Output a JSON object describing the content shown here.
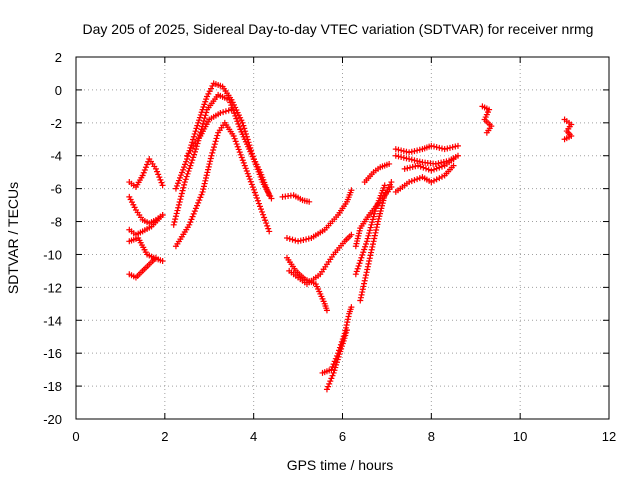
{
  "chart_data": {
    "type": "scatter",
    "title": "Day 205 of 2025, Sidereal Day-to-day VTEC variation (SDTVAR) for receiver nrmg",
    "xlabel": "GPS time / hours",
    "ylabel": "SDTVAR / TECUs",
    "xlim": [
      0,
      12
    ],
    "ylim": [
      -20,
      2
    ],
    "xticks": [
      0,
      2,
      4,
      6,
      8,
      10,
      12
    ],
    "yticks": [
      -20,
      -18,
      -16,
      -14,
      -12,
      -10,
      -8,
      -6,
      -4,
      -2,
      0,
      2
    ],
    "grid": true,
    "marker": "+",
    "color": "#ff0000",
    "series": [
      {
        "points": [
          [
            1.2,
            -5.6
          ],
          [
            1.35,
            -5.9
          ],
          [
            1.5,
            -5.2
          ],
          [
            1.65,
            -4.2
          ],
          [
            1.8,
            -4.8
          ],
          [
            1.95,
            -5.8
          ]
        ]
      },
      {
        "points": [
          [
            1.2,
            -6.5
          ],
          [
            1.35,
            -7.3
          ],
          [
            1.5,
            -7.9
          ],
          [
            1.65,
            -8.1
          ],
          [
            1.8,
            -7.9
          ],
          [
            1.95,
            -7.6
          ]
        ]
      },
      {
        "points": [
          [
            1.2,
            -8.5
          ],
          [
            1.35,
            -8.8
          ],
          [
            1.5,
            -8.6
          ],
          [
            1.7,
            -8.3
          ],
          [
            1.95,
            -7.6
          ]
        ]
      },
      {
        "points": [
          [
            1.2,
            -9.2
          ],
          [
            1.4,
            -9.0
          ],
          [
            1.6,
            -10.0
          ],
          [
            1.75,
            -10.2
          ],
          [
            1.95,
            -10.4
          ]
        ]
      },
      {
        "points": [
          [
            1.2,
            -11.2
          ],
          [
            1.35,
            -11.4
          ],
          [
            1.5,
            -11.0
          ],
          [
            1.65,
            -10.6
          ],
          [
            1.8,
            -10.2
          ]
        ]
      },
      {
        "points": [
          [
            2.25,
            -6.0
          ],
          [
            2.5,
            -4.2
          ],
          [
            2.75,
            -2.0
          ],
          [
            2.95,
            -0.4
          ],
          [
            3.1,
            0.4
          ],
          [
            3.3,
            0.2
          ],
          [
            3.5,
            -0.6
          ],
          [
            3.75,
            -2.0
          ],
          [
            4.0,
            -4.2
          ],
          [
            4.2,
            -5.6
          ],
          [
            4.4,
            -6.6
          ]
        ]
      },
      {
        "points": [
          [
            2.2,
            -8.2
          ],
          [
            2.45,
            -5.6
          ],
          [
            2.7,
            -3.6
          ],
          [
            2.95,
            -1.2
          ],
          [
            3.2,
            -0.3
          ],
          [
            3.45,
            -0.6
          ],
          [
            3.7,
            -2.4
          ],
          [
            3.95,
            -3.9
          ],
          [
            4.15,
            -5.0
          ],
          [
            4.35,
            -6.4
          ]
        ]
      },
      {
        "points": [
          [
            2.25,
            -9.5
          ],
          [
            2.55,
            -8.2
          ],
          [
            2.85,
            -6.2
          ],
          [
            3.05,
            -4.0
          ],
          [
            3.2,
            -2.6
          ],
          [
            3.35,
            -2.0
          ],
          [
            3.55,
            -2.8
          ],
          [
            3.8,
            -4.6
          ],
          [
            4.05,
            -6.4
          ],
          [
            4.35,
            -8.6
          ]
        ]
      },
      {
        "points": [
          [
            2.5,
            -4.0
          ],
          [
            2.8,
            -2.8
          ],
          [
            3.0,
            -1.8
          ],
          [
            3.25,
            -1.4
          ],
          [
            3.5,
            -1.2
          ]
        ]
      },
      {
        "points": [
          [
            4.65,
            -6.5
          ],
          [
            4.9,
            -6.4
          ],
          [
            5.1,
            -6.7
          ],
          [
            5.25,
            -6.8
          ]
        ]
      },
      {
        "points": [
          [
            4.75,
            -9.0
          ],
          [
            5.0,
            -9.2
          ],
          [
            5.3,
            -9.0
          ],
          [
            5.6,
            -8.5
          ],
          [
            5.9,
            -7.6
          ],
          [
            6.1,
            -6.8
          ],
          [
            6.2,
            -6.1
          ]
        ]
      },
      {
        "points": [
          [
            4.75,
            -10.2
          ],
          [
            4.95,
            -11.0
          ],
          [
            5.15,
            -11.5
          ],
          [
            5.4,
            -11.8
          ],
          [
            5.6,
            -13.0
          ],
          [
            5.65,
            -13.4
          ]
        ]
      },
      {
        "points": [
          [
            4.8,
            -11.0
          ],
          [
            5.2,
            -11.8
          ],
          [
            5.5,
            -11.2
          ],
          [
            5.8,
            -10.0
          ],
          [
            6.05,
            -9.2
          ],
          [
            6.2,
            -8.8
          ]
        ]
      },
      {
        "points": [
          [
            5.55,
            -17.2
          ],
          [
            5.75,
            -17.0
          ],
          [
            5.9,
            -16.0
          ],
          [
            6.05,
            -14.8
          ],
          [
            6.15,
            -13.6
          ],
          [
            6.2,
            -13.2
          ]
        ]
      },
      {
        "points": [
          [
            5.65,
            -18.2
          ],
          [
            5.8,
            -17.2
          ],
          [
            5.95,
            -15.9
          ],
          [
            6.1,
            -14.6
          ]
        ]
      },
      {
        "points": [
          [
            6.3,
            -9.5
          ],
          [
            6.4,
            -8.4
          ],
          [
            6.6,
            -7.6
          ],
          [
            6.9,
            -6.6
          ],
          [
            7.1,
            -5.9
          ]
        ]
      },
      {
        "points": [
          [
            6.4,
            -12.8
          ],
          [
            6.6,
            -10.4
          ],
          [
            6.8,
            -8.0
          ],
          [
            6.95,
            -6.4
          ],
          [
            7.1,
            -5.6
          ]
        ]
      },
      {
        "points": [
          [
            6.3,
            -11.2
          ],
          [
            6.55,
            -9.2
          ],
          [
            6.75,
            -7.2
          ],
          [
            6.95,
            -5.8
          ]
        ]
      },
      {
        "points": [
          [
            6.5,
            -5.6
          ],
          [
            6.7,
            -5.0
          ],
          [
            6.85,
            -4.7
          ],
          [
            7.05,
            -4.5
          ]
        ]
      },
      {
        "points": [
          [
            7.2,
            -3.6
          ],
          [
            7.5,
            -3.8
          ],
          [
            7.8,
            -3.6
          ],
          [
            8.0,
            -3.4
          ],
          [
            8.3,
            -3.6
          ],
          [
            8.6,
            -3.4
          ]
        ]
      },
      {
        "points": [
          [
            7.2,
            -4.0
          ],
          [
            7.5,
            -4.2
          ],
          [
            7.8,
            -4.4
          ],
          [
            8.1,
            -4.5
          ],
          [
            8.4,
            -4.3
          ],
          [
            8.6,
            -4.0
          ]
        ]
      },
      {
        "points": [
          [
            7.4,
            -4.8
          ],
          [
            7.7,
            -4.6
          ],
          [
            8.0,
            -4.9
          ],
          [
            8.3,
            -4.6
          ],
          [
            8.5,
            -4.2
          ]
        ]
      },
      {
        "points": [
          [
            7.2,
            -6.2
          ],
          [
            7.5,
            -5.6
          ],
          [
            7.8,
            -5.3
          ],
          [
            8.0,
            -5.6
          ],
          [
            8.3,
            -5.2
          ],
          [
            8.5,
            -4.6
          ]
        ]
      },
      {
        "points": [
          [
            9.15,
            -1.0
          ],
          [
            9.3,
            -1.2
          ],
          [
            9.2,
            -1.8
          ],
          [
            9.35,
            -2.2
          ],
          [
            9.25,
            -2.6
          ]
        ]
      },
      {
        "points": [
          [
            11.0,
            -1.8
          ],
          [
            11.15,
            -2.1
          ],
          [
            11.05,
            -2.5
          ],
          [
            11.15,
            -2.8
          ],
          [
            11.0,
            -3.0
          ]
        ]
      }
    ]
  }
}
